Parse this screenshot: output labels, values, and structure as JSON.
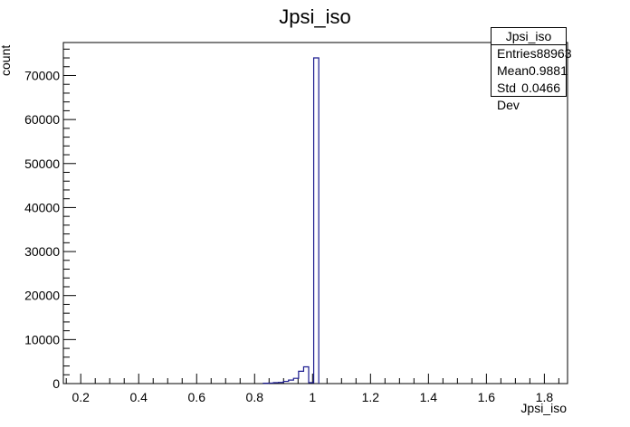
{
  "chart_data": {
    "type": "histogram",
    "title": "Jpsi_iso",
    "xlabel": "Jpsi_iso",
    "ylabel": "count",
    "xlim": [
      0.14,
      1.88
    ],
    "ylim": [
      0,
      77500
    ],
    "x_ticks": [
      0.2,
      0.4,
      0.6,
      0.8,
      1.0,
      1.2,
      1.4,
      1.6,
      1.8
    ],
    "x_tick_labels": [
      "0.2",
      "0.4",
      "0.6",
      "0.8",
      "1",
      "1.2",
      "1.4",
      "1.6",
      "1.8"
    ],
    "y_ticks": [
      0,
      10000,
      20000,
      30000,
      40000,
      50000,
      60000,
      70000
    ],
    "y_tick_labels": [
      "0",
      "10000",
      "20000",
      "30000",
      "40000",
      "50000",
      "60000",
      "70000"
    ],
    "bin_width": 0.0174,
    "bins": [
      {
        "x0": 0.83,
        "x1": 0.8474,
        "count": 80
      },
      {
        "x0": 0.8474,
        "x1": 0.8648,
        "count": 120
      },
      {
        "x0": 0.8648,
        "x1": 0.8822,
        "count": 200
      },
      {
        "x0": 0.8822,
        "x1": 0.8996,
        "count": 250
      },
      {
        "x0": 0.8996,
        "x1": 0.917,
        "count": 500
      },
      {
        "x0": 0.917,
        "x1": 0.9344,
        "count": 800
      },
      {
        "x0": 0.9344,
        "x1": 0.9518,
        "count": 1200
      },
      {
        "x0": 0.9518,
        "x1": 0.9692,
        "count": 2800
      },
      {
        "x0": 0.9692,
        "x1": 0.9866,
        "count": 3800
      },
      {
        "x0": 0.9866,
        "x1": 1.004,
        "count": 200
      },
      {
        "x0": 1.004,
        "x1": 1.0214,
        "count": 74000
      }
    ],
    "line_color": "#1b1b8f",
    "stats": {
      "name": "Jpsi_iso",
      "rows": [
        {
          "label": "Entries",
          "value": "88963"
        },
        {
          "label": "Mean",
          "value": "0.9881"
        },
        {
          "label": "Std Dev",
          "value": "0.0466"
        }
      ]
    }
  }
}
